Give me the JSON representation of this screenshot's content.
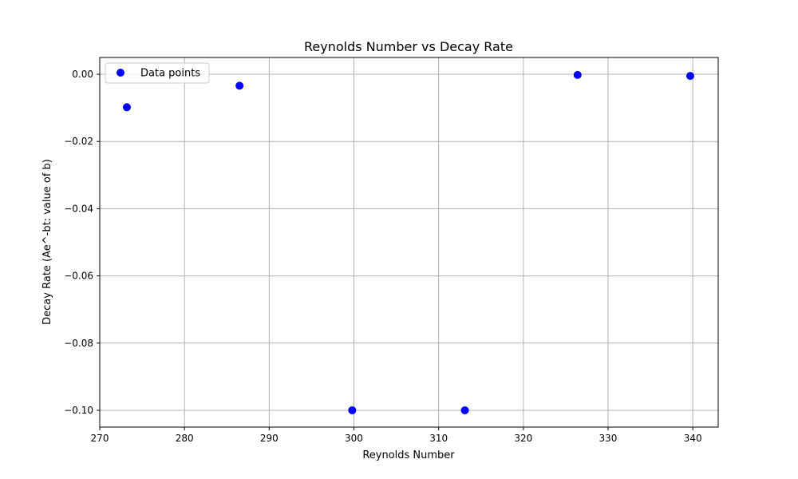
{
  "chart_data": {
    "type": "scatter",
    "title": "Reynolds Number vs Decay Rate",
    "xlabel": "Reynolds Number",
    "ylabel": "Decay Rate (Ae^-bt: value of b)",
    "xlim": [
      270,
      343
    ],
    "ylim": [
      -0.105,
      0.005
    ],
    "xticks": [
      270,
      280,
      290,
      300,
      310,
      320,
      330,
      340
    ],
    "xtick_labels": [
      "270",
      "280",
      "290",
      "300",
      "310",
      "320",
      "330",
      "340"
    ],
    "yticks": [
      0.0,
      -0.02,
      -0.04,
      -0.06,
      -0.08,
      -0.1
    ],
    "ytick_labels": [
      "0.00",
      "−0.02",
      "−0.04",
      "−0.06",
      "−0.08",
      "−0.10"
    ],
    "grid": true,
    "legend_position": "top-left",
    "series": [
      {
        "name": "Data points",
        "color": "#0000ff",
        "x": [
          273.2,
          286.5,
          299.8,
          313.1,
          326.4,
          339.7
        ],
        "y": [
          -0.0098,
          -0.0034,
          -0.1,
          -0.1,
          -0.0002,
          -0.0005
        ]
      }
    ]
  }
}
